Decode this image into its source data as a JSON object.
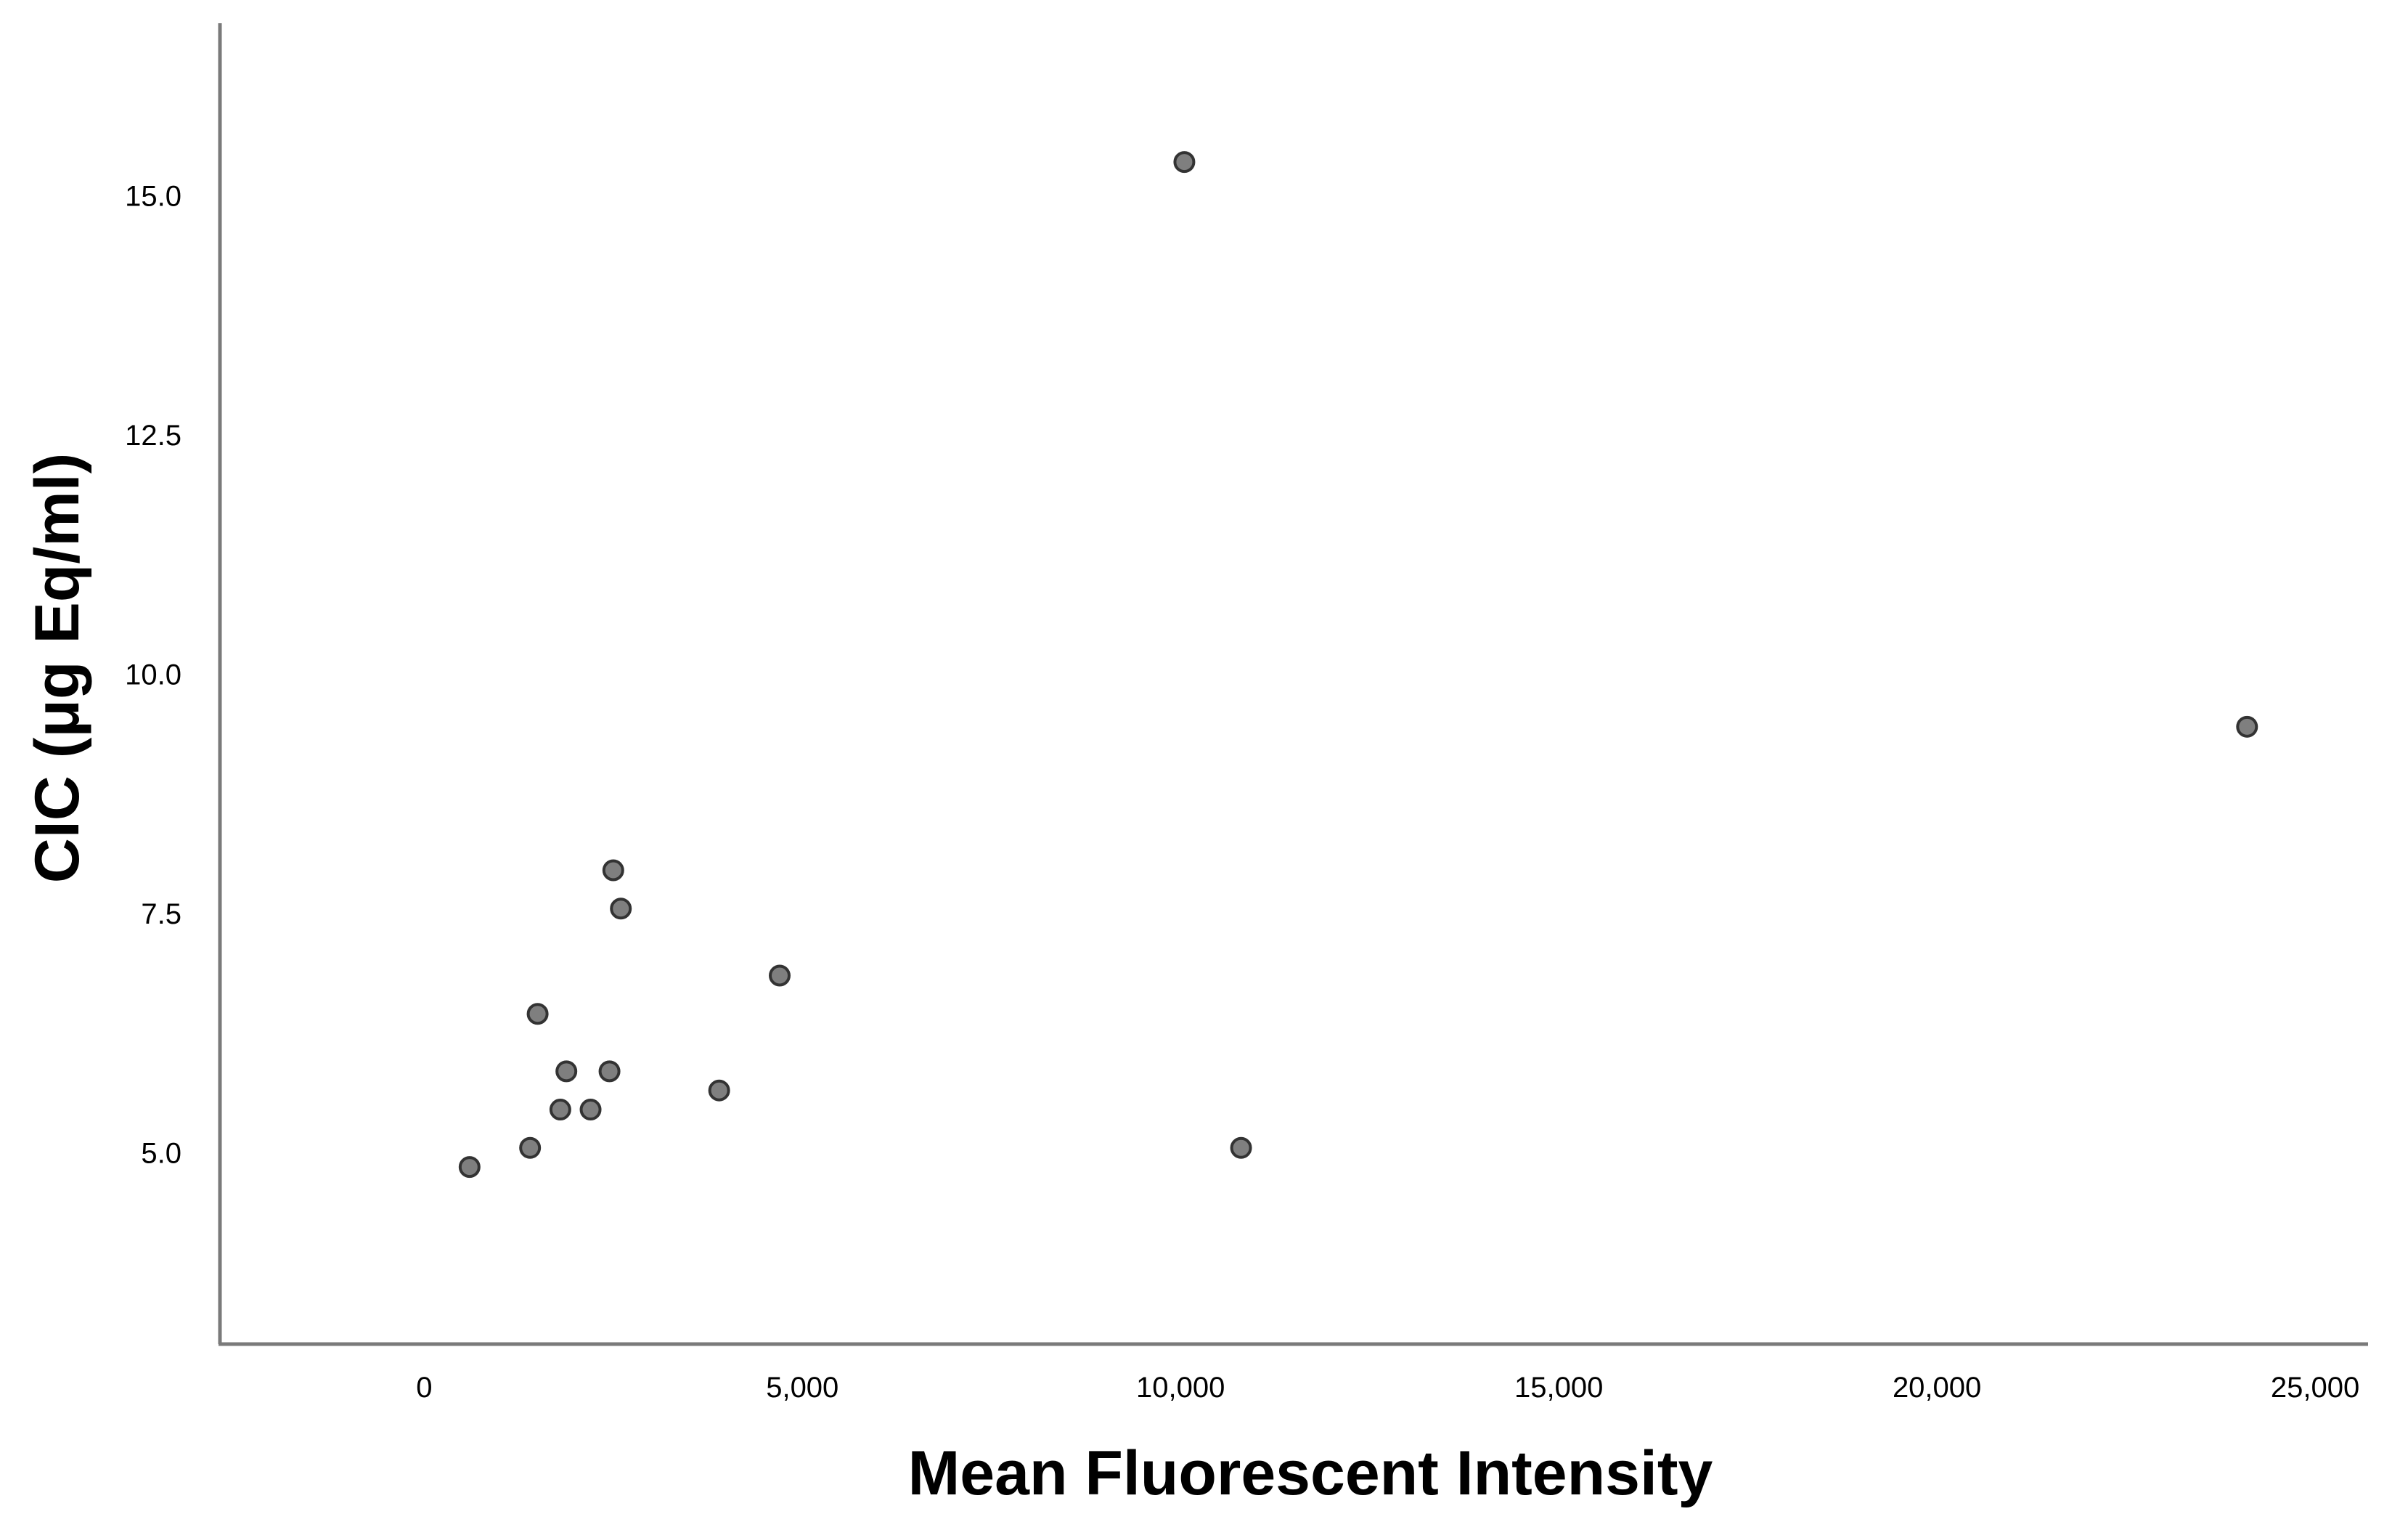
{
  "chart_data": {
    "type": "scatter",
    "title": "",
    "xlabel": "Mean Fluorescent Intensity",
    "ylabel": "CIC (μg Eq/ml)",
    "xlim": [
      -2700,
      25700
    ],
    "ylim": [
      3.0,
      16.8
    ],
    "x_ticks": [
      0,
      5000,
      10000,
      15000,
      20000,
      25000
    ],
    "x_tick_labels": [
      "0",
      "5,000",
      "10,000",
      "15,000",
      "20,000",
      "25,000"
    ],
    "y_ticks": [
      5.0,
      7.5,
      10.0,
      12.5,
      15.0
    ],
    "y_tick_labels": [
      "5.0",
      "7.5",
      "10.0",
      "12.5",
      "15.0"
    ],
    "grid": false,
    "marker_color": "#7f7f7f",
    "marker_edge_color": "#333333",
    "points": [
      {
        "x": 600,
        "y": 4.85
      },
      {
        "x": 1400,
        "y": 5.05
      },
      {
        "x": 1500,
        "y": 6.45
      },
      {
        "x": 1800,
        "y": 5.45
      },
      {
        "x": 1880,
        "y": 5.85
      },
      {
        "x": 2200,
        "y": 5.45
      },
      {
        "x": 2450,
        "y": 5.85
      },
      {
        "x": 2500,
        "y": 7.95
      },
      {
        "x": 2600,
        "y": 7.55
      },
      {
        "x": 3900,
        "y": 5.65
      },
      {
        "x": 4700,
        "y": 6.85
      },
      {
        "x": 10050,
        "y": 15.35
      },
      {
        "x": 10800,
        "y": 5.05
      },
      {
        "x": 24100,
        "y": 9.45
      }
    ]
  }
}
